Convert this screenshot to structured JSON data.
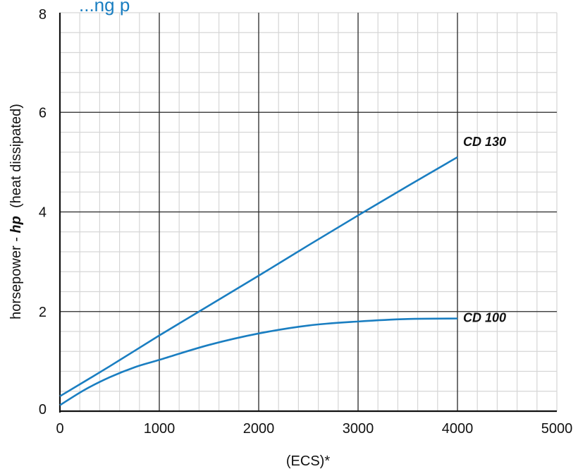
{
  "chart_data": {
    "type": "line",
    "title": "...ng  p",
    "xlabel": "(ECS)*",
    "ylabel": {
      "prefix": "horsepower - ",
      "emphasis": "hp",
      "suffix": "  (heat dissipated)"
    },
    "xlim": [
      0,
      5000
    ],
    "ylim": [
      0,
      8
    ],
    "x_ticks": [
      "0",
      "1000",
      "2000",
      "3000",
      "4000",
      "5000"
    ],
    "y_ticks": [
      "0",
      "2",
      "4",
      "6",
      "8"
    ],
    "grid": true,
    "series": [
      {
        "name": "CD 130",
        "x": [
          0,
          500,
          1000,
          1500,
          2000,
          2500,
          3000,
          3500,
          4000
        ],
        "y": [
          0.3,
          0.9,
          1.52,
          2.12,
          2.72,
          3.33,
          3.93,
          4.52,
          5.1
        ]
      },
      {
        "name": "CD 100",
        "x": [
          0,
          250,
          500,
          750,
          1000,
          1500,
          2000,
          2500,
          3000,
          3500,
          4000
        ],
        "y": [
          0.12,
          0.43,
          0.68,
          0.88,
          1.03,
          1.33,
          1.56,
          1.72,
          1.8,
          1.85,
          1.86
        ]
      }
    ],
    "colors": {
      "line": "#1a7ec1",
      "major_grid": "#2b2b2b",
      "minor_grid": "#d6d6d6",
      "title": "#1a7ec1"
    }
  }
}
